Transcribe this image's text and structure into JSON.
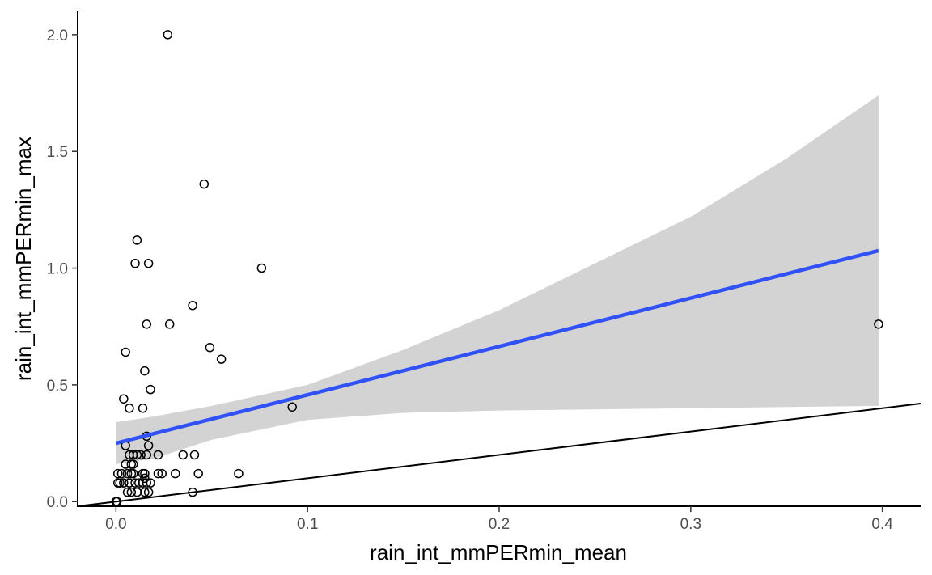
{
  "chart_data": {
    "type": "scatter",
    "xlabel": "rain_int_mmPERmin_mean",
    "ylabel": "rain_int_mmPERmin_max",
    "xlim": [
      -0.02,
      0.42
    ],
    "ylim": [
      -0.02,
      2.1
    ],
    "x_ticks": [
      0.0,
      0.1,
      0.2,
      0.3,
      0.4
    ],
    "x_tick_labels": [
      "0.0",
      "0.1",
      "0.2",
      "0.3",
      "0.4"
    ],
    "y_ticks": [
      0.0,
      0.5,
      1.0,
      1.5,
      2.0
    ],
    "y_tick_labels": [
      "0.0",
      "0.5",
      "1.0",
      "1.5",
      "2.0"
    ],
    "grid": false,
    "legend": "none",
    "points": [
      [
        0.027,
        2.0
      ],
      [
        0.046,
        1.36
      ],
      [
        0.011,
        1.12
      ],
      [
        0.01,
        1.02
      ],
      [
        0.017,
        1.02
      ],
      [
        0.076,
        1.0
      ],
      [
        0.04,
        0.84
      ],
      [
        0.016,
        0.76
      ],
      [
        0.028,
        0.76
      ],
      [
        0.398,
        0.76
      ],
      [
        0.049,
        0.66
      ],
      [
        0.005,
        0.64
      ],
      [
        0.055,
        0.61
      ],
      [
        0.015,
        0.56
      ],
      [
        0.018,
        0.48
      ],
      [
        0.004,
        0.44
      ],
      [
        0.092,
        0.405
      ],
      [
        0.007,
        0.4
      ],
      [
        0.014,
        0.4
      ],
      [
        0.016,
        0.28
      ],
      [
        0.005,
        0.24
      ],
      [
        0.017,
        0.24
      ],
      [
        0.007,
        0.2
      ],
      [
        0.009,
        0.2
      ],
      [
        0.011,
        0.2
      ],
      [
        0.013,
        0.2
      ],
      [
        0.016,
        0.2
      ],
      [
        0.022,
        0.2
      ],
      [
        0.035,
        0.2
      ],
      [
        0.041,
        0.2
      ],
      [
        0.005,
        0.16
      ],
      [
        0.008,
        0.16
      ],
      [
        0.009,
        0.16
      ],
      [
        0.001,
        0.12
      ],
      [
        0.003,
        0.12
      ],
      [
        0.006,
        0.12
      ],
      [
        0.008,
        0.12
      ],
      [
        0.009,
        0.12
      ],
      [
        0.014,
        0.12
      ],
      [
        0.015,
        0.12
      ],
      [
        0.022,
        0.12
      ],
      [
        0.024,
        0.12
      ],
      [
        0.031,
        0.12
      ],
      [
        0.043,
        0.12
      ],
      [
        0.064,
        0.12
      ],
      [
        0.001,
        0.08
      ],
      [
        0.002,
        0.08
      ],
      [
        0.004,
        0.08
      ],
      [
        0.007,
        0.08
      ],
      [
        0.01,
        0.08
      ],
      [
        0.012,
        0.08
      ],
      [
        0.014,
        0.08
      ],
      [
        0.016,
        0.08
      ],
      [
        0.018,
        0.08
      ],
      [
        0.015,
        0.1
      ],
      [
        0.006,
        0.04
      ],
      [
        0.008,
        0.04
      ],
      [
        0.011,
        0.04
      ],
      [
        0.015,
        0.04
      ],
      [
        0.017,
        0.04
      ],
      [
        0.04,
        0.04
      ],
      [
        0.0,
        0.0
      ],
      [
        0.0005,
        0.0
      ]
    ],
    "fit_line": {
      "color": "#3050f8",
      "start": [
        0.0,
        0.25
      ],
      "end": [
        0.398,
        1.075
      ]
    },
    "confidence_band": {
      "color": "#d3d3d3",
      "x": [
        0.0,
        0.02,
        0.05,
        0.1,
        0.15,
        0.2,
        0.25,
        0.3,
        0.35,
        0.398
      ],
      "upper": [
        0.34,
        0.365,
        0.41,
        0.5,
        0.65,
        0.82,
        1.02,
        1.22,
        1.47,
        1.74
      ],
      "lower": [
        0.16,
        0.185,
        0.265,
        0.35,
        0.38,
        0.39,
        0.395,
        0.4,
        0.405,
        0.41
      ]
    },
    "reference_line": {
      "color": "#000000",
      "slope": 1,
      "intercept": 0
    }
  }
}
